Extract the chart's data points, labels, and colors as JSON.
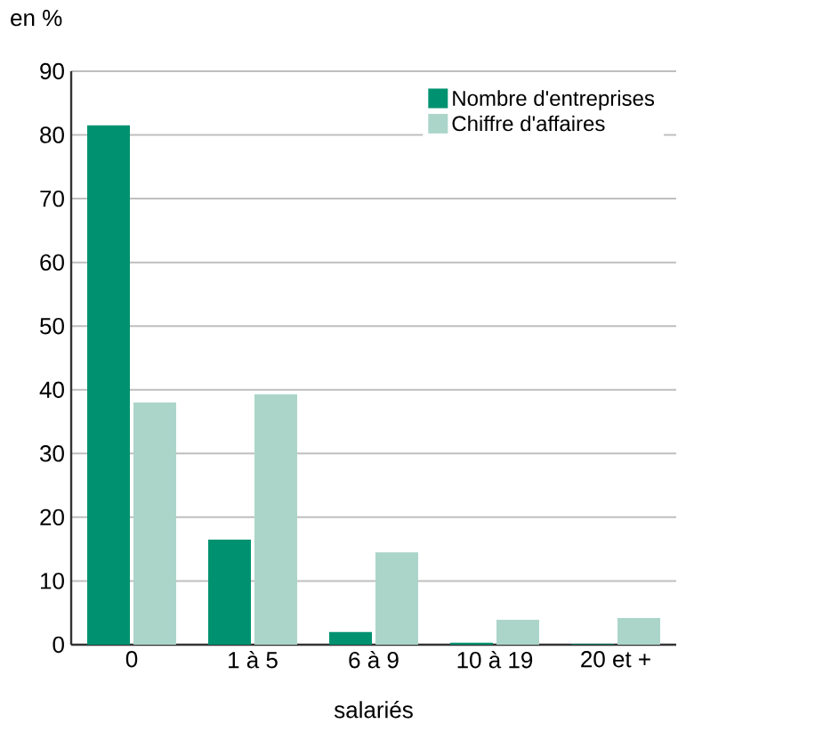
{
  "chart_data": {
    "type": "bar",
    "ylabel": "en %",
    "xlabel": "salariés",
    "categories": [
      "0",
      "1 à 5",
      "6 à 9",
      "10 à 19",
      "20 et +"
    ],
    "series": [
      {
        "name": "Nombre d'entreprises",
        "color": "#009270",
        "values": [
          81.5,
          16.5,
          2,
          0.3,
          0.1
        ]
      },
      {
        "name": "Chiffre d'affaires",
        "color": "#acd5ca",
        "values": [
          38,
          39.3,
          14.5,
          3.9,
          4.2
        ]
      }
    ],
    "ylim": [
      0,
      90
    ],
    "yticks": [
      0,
      10,
      20,
      30,
      40,
      50,
      60,
      70,
      80,
      90
    ],
    "grid": "y",
    "legend": "top right"
  }
}
